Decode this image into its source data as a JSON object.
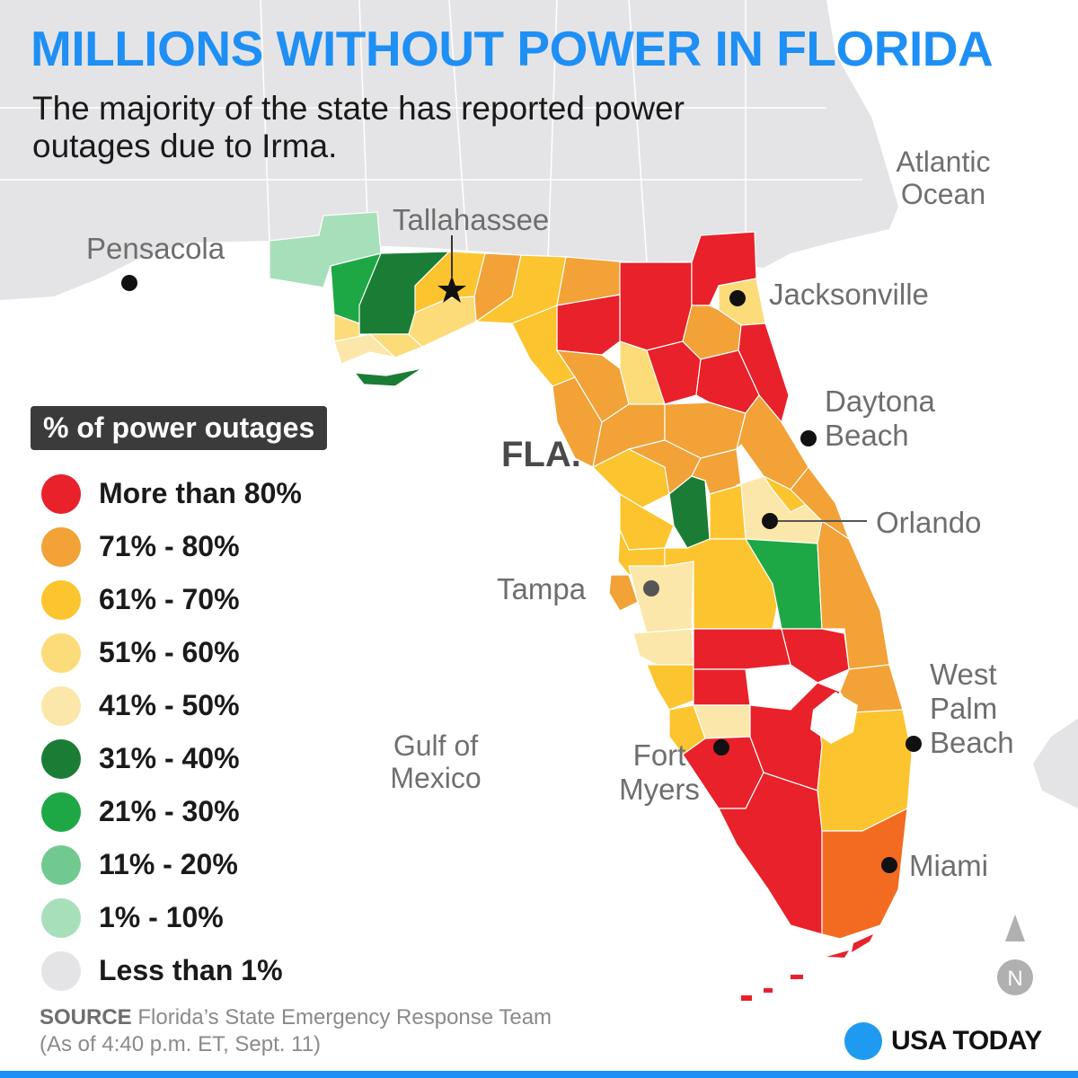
{
  "title": "MILLIONS WITHOUT POWER IN FLORIDA",
  "subtitle": "The majority of the state has reported power outages due to Irma.",
  "labels": {
    "state": "FLA.",
    "ocean_atlantic": "Atlantic Ocean",
    "gulf": "Gulf of Mexico"
  },
  "cities": [
    {
      "name": "Pensacola",
      "marker": "dot"
    },
    {
      "name": "Tallahassee",
      "marker": "star"
    },
    {
      "name": "Jacksonville",
      "marker": "dot"
    },
    {
      "name": "Daytona Beach",
      "marker": "dot"
    },
    {
      "name": "Orlando",
      "marker": "dot"
    },
    {
      "name": "Tampa",
      "marker": "dot"
    },
    {
      "name": "West Palm Beach",
      "marker": "dot"
    },
    {
      "name": "Fort Myers",
      "marker": "dot"
    },
    {
      "name": "Miami",
      "marker": "dot"
    }
  ],
  "legend": {
    "title": "% of power outages",
    "items": [
      {
        "label": "More than 80%",
        "color": "#e8212a"
      },
      {
        "label": "71% - 80%",
        "color": "#f2a237"
      },
      {
        "label": "61% - 70%",
        "color": "#fcc42e"
      },
      {
        "label": "51% - 60%",
        "color": "#fcdc79"
      },
      {
        "label": "41% - 50%",
        "color": "#fce7aa"
      },
      {
        "label": "31% - 40%",
        "color": "#1b7d35"
      },
      {
        "label": "21% - 30%",
        "color": "#1ea845"
      },
      {
        "label": "11% - 20%",
        "color": "#72c98f"
      },
      {
        "label": "1% - 10%",
        "color": "#a8dfbb"
      },
      {
        "label": "Less than 1%",
        "color": "#e4e4e6"
      }
    ]
  },
  "source": {
    "label": "SOURCE",
    "text": "Florida’s State Emergency Response Team",
    "asof": "(As of 4:40 p.m. ET, Sept. 11)"
  },
  "brand": "USA TODAY",
  "north": "N",
  "colors": {
    "title": "#1e8ff5",
    "land": "#e4e4e6",
    "water": "#ffffff",
    "miami_dade": "#f26b21"
  }
}
